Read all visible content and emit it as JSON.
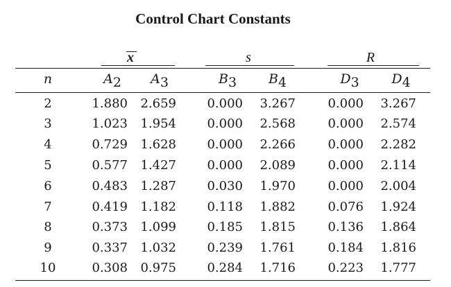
{
  "title": "Control Chart Constants",
  "groups": {
    "xbar": "x",
    "s": "s",
    "r": "R"
  },
  "headers": {
    "n": "n",
    "a2": {
      "letter": "A",
      "sub": "2"
    },
    "a3": {
      "letter": "A",
      "sub": "3"
    },
    "b3": {
      "letter": "B",
      "sub": "3"
    },
    "b4": {
      "letter": "B",
      "sub": "4"
    },
    "d3": {
      "letter": "D",
      "sub": "3"
    },
    "d4": {
      "letter": "D",
      "sub": "4"
    }
  },
  "rows": [
    {
      "n": "2",
      "a2": "1.880",
      "a3": "2.659",
      "b3": "0.000",
      "b4": "3.267",
      "d3": "0.000",
      "d4": "3.267"
    },
    {
      "n": "3",
      "a2": "1.023",
      "a3": "1.954",
      "b3": "0.000",
      "b4": "2.568",
      "d3": "0.000",
      "d4": "2.574"
    },
    {
      "n": "4",
      "a2": "0.729",
      "a3": "1.628",
      "b3": "0.000",
      "b4": "2.266",
      "d3": "0.000",
      "d4": "2.282"
    },
    {
      "n": "5",
      "a2": "0.577",
      "a3": "1.427",
      "b3": "0.000",
      "b4": "2.089",
      "d3": "0.000",
      "d4": "2.114"
    },
    {
      "n": "6",
      "a2": "0.483",
      "a3": "1.287",
      "b3": "0.030",
      "b4": "1.970",
      "d3": "0.000",
      "d4": "2.004"
    },
    {
      "n": "7",
      "a2": "0.419",
      "a3": "1.182",
      "b3": "0.118",
      "b4": "1.882",
      "d3": "0.076",
      "d4": "1.924"
    },
    {
      "n": "8",
      "a2": "0.373",
      "a3": "1.099",
      "b3": "0.185",
      "b4": "1.815",
      "d3": "0.136",
      "d4": "1.864"
    },
    {
      "n": "9",
      "a2": "0.337",
      "a3": "1.032",
      "b3": "0.239",
      "b4": "1.761",
      "d3": "0.184",
      "d4": "1.816"
    },
    {
      "n": "10",
      "a2": "0.308",
      "a3": "0.975",
      "b3": "0.284",
      "b4": "1.716",
      "d3": "0.223",
      "d4": "1.777"
    }
  ]
}
